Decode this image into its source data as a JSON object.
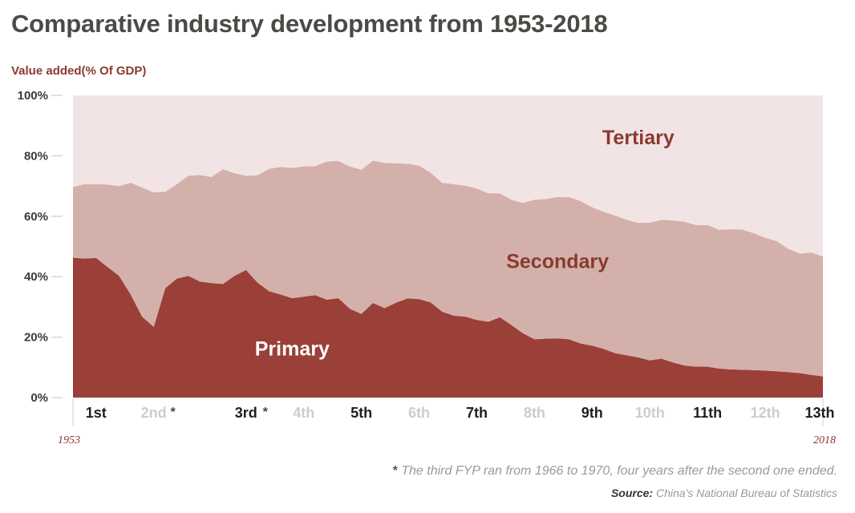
{
  "title": "Comparative industry development from 1953-2018",
  "colors": {
    "primary": "#9a4038",
    "secondary": "#d4b0ab",
    "tertiary": "#f2e4e4",
    "accent_text": "#8a3a30",
    "plan_dark": "#1e1e1e",
    "plan_light": "#cccccc"
  },
  "chart_data": {
    "type": "area",
    "stacked": true,
    "ylabel": "Value added(% Of GDP)",
    "ylim": [
      0,
      100
    ],
    "yticks": [
      "0%",
      "20%",
      "40%",
      "60%",
      "80%",
      "100%"
    ],
    "grid": false,
    "x": [
      1953,
      1954,
      1955,
      1956,
      1957,
      1958,
      1959,
      1960,
      1961,
      1962,
      1963,
      1964,
      1965,
      1966,
      1967,
      1968,
      1969,
      1970,
      1971,
      1972,
      1973,
      1974,
      1975,
      1976,
      1977,
      1978,
      1979,
      1980,
      1981,
      1982,
      1983,
      1984,
      1985,
      1986,
      1987,
      1988,
      1989,
      1990,
      1991,
      1992,
      1993,
      1994,
      1995,
      1996,
      1997,
      1998,
      1999,
      2000,
      2001,
      2002,
      2003,
      2004,
      2005,
      2006,
      2007,
      2008,
      2009,
      2010,
      2011,
      2012,
      2013,
      2014,
      2015,
      2016,
      2017,
      2018
    ],
    "x_start_label": "1953",
    "x_end_label": "2018",
    "series": [
      {
        "name": "Primary",
        "values": [
          46.3,
          46.0,
          46.2,
          43.2,
          40.3,
          34.1,
          26.7,
          23.4,
          36.2,
          39.4,
          40.3,
          38.4,
          37.9,
          37.6,
          40.3,
          42.2,
          38.0,
          35.2,
          34.1,
          32.9,
          33.4,
          33.9,
          32.4,
          32.9,
          29.4,
          27.7,
          31.3,
          29.6,
          31.4,
          32.8,
          32.6,
          31.5,
          28.4,
          27.1,
          26.8,
          25.7,
          25.1,
          26.6,
          24.0,
          21.3,
          19.3,
          19.5,
          19.6,
          19.3,
          17.9,
          17.2,
          16.1,
          14.7,
          14.0,
          13.3,
          12.3,
          12.9,
          11.6,
          10.6,
          10.2,
          10.2,
          9.6,
          9.3,
          9.2,
          9.1,
          8.9,
          8.7,
          8.4,
          8.1,
          7.5,
          7.0
        ]
      },
      {
        "name": "Secondary",
        "values": [
          23.4,
          24.6,
          24.4,
          27.3,
          29.7,
          37.0,
          42.8,
          44.5,
          31.9,
          31.2,
          33.1,
          35.3,
          35.1,
          38.0,
          33.9,
          31.2,
          35.6,
          40.5,
          42.2,
          43.1,
          43.1,
          42.7,
          45.7,
          45.4,
          47.1,
          47.7,
          47.1,
          48.1,
          46.1,
          44.6,
          44.2,
          42.9,
          42.7,
          43.5,
          43.3,
          43.5,
          42.5,
          41.0,
          41.5,
          43.1,
          46.2,
          46.2,
          46.8,
          47.1,
          47.1,
          45.8,
          45.4,
          45.5,
          44.8,
          44.5,
          45.6,
          45.9,
          47.0,
          47.6,
          46.9,
          46.9,
          45.9,
          46.4,
          46.4,
          45.3,
          44.0,
          43.1,
          40.8,
          39.6,
          40.5,
          39.7
        ]
      },
      {
        "name": "Tertiary",
        "values": [
          30.3,
          29.4,
          29.4,
          29.5,
          30.0,
          28.9,
          30.5,
          32.1,
          31.9,
          29.4,
          26.6,
          26.3,
          27.0,
          24.4,
          25.8,
          26.6,
          26.4,
          24.3,
          23.7,
          24.0,
          23.5,
          23.4,
          21.9,
          21.7,
          23.5,
          24.6,
          21.6,
          22.3,
          22.5,
          22.6,
          23.2,
          25.6,
          28.9,
          29.4,
          29.9,
          30.8,
          32.4,
          32.4,
          34.5,
          35.6,
          34.5,
          34.3,
          33.6,
          33.6,
          35.0,
          37.0,
          38.5,
          39.8,
          41.2,
          42.2,
          42.1,
          41.2,
          41.4,
          41.8,
          42.9,
          42.9,
          44.5,
          44.3,
          44.4,
          45.6,
          47.1,
          48.2,
          50.8,
          52.3,
          52.0,
          53.3
        ]
      }
    ],
    "area_labels": [
      "Primary",
      "Secondary",
      "Tertiary"
    ],
    "five_year_plans": [
      {
        "label": "1st",
        "start": 1953,
        "end": 1957,
        "shade": "dark"
      },
      {
        "label": "2nd",
        "start": 1958,
        "end": 1962,
        "shade": "light",
        "asterisk": "*"
      },
      {
        "label": "3rd",
        "start": 1966,
        "end": 1970,
        "shade": "dark",
        "asterisk": "*"
      },
      {
        "label": "4th",
        "start": 1971,
        "end": 1975,
        "shade": "light"
      },
      {
        "label": "5th",
        "start": 1976,
        "end": 1980,
        "shade": "dark"
      },
      {
        "label": "6th",
        "start": 1981,
        "end": 1985,
        "shade": "light"
      },
      {
        "label": "7th",
        "start": 1986,
        "end": 1990,
        "shade": "dark"
      },
      {
        "label": "8th",
        "start": 1991,
        "end": 1995,
        "shade": "light"
      },
      {
        "label": "9th",
        "start": 1996,
        "end": 2000,
        "shade": "dark"
      },
      {
        "label": "10th",
        "start": 2001,
        "end": 2005,
        "shade": "light"
      },
      {
        "label": "11th",
        "start": 2006,
        "end": 2010,
        "shade": "dark"
      },
      {
        "label": "12th",
        "start": 2011,
        "end": 2015,
        "shade": "light"
      },
      {
        "label": "13th",
        "start": 2016,
        "end": 2020,
        "shade": "dark"
      }
    ]
  },
  "footnote": {
    "mark": "*",
    "text": " The third FYP ran from 1966 to 1970, four years after the second one ended."
  },
  "source": {
    "label": "Source:",
    "text": " China's National Bureau of Statistics"
  }
}
